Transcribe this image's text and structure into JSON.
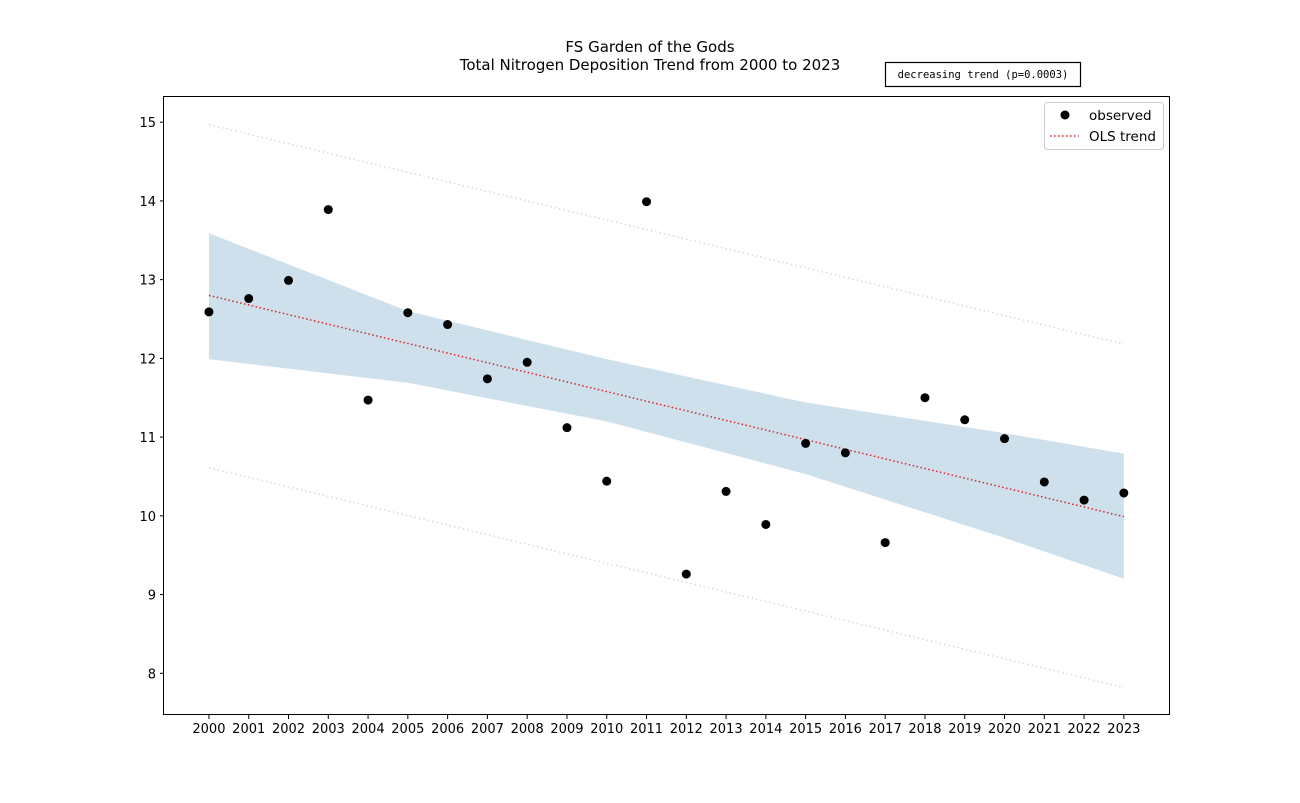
{
  "chart_data": {
    "type": "scatter",
    "title": "FS Garden of the Gods",
    "subtitle": "Total Nitrogen Deposition Trend from 2000 to 2023",
    "annotation": "decreasing trend (p=0.0003)",
    "xlabel": "",
    "ylabel": "",
    "x": [
      2000,
      2001,
      2002,
      2003,
      2004,
      2005,
      2006,
      2007,
      2008,
      2009,
      2010,
      2011,
      2012,
      2013,
      2014,
      2015,
      2016,
      2017,
      2018,
      2019,
      2020,
      2021,
      2022,
      2023
    ],
    "x_tick_labels": [
      "2000",
      "2001",
      "2002",
      "2003",
      "2004",
      "2005",
      "2006",
      "2007",
      "2008",
      "2009",
      "2010",
      "2011",
      "2012",
      "2013",
      "2014",
      "2015",
      "2016",
      "2017",
      "2018",
      "2019",
      "2020",
      "2021",
      "2022",
      "2023"
    ],
    "y_ticks": [
      8,
      9,
      10,
      11,
      12,
      13,
      14,
      15
    ],
    "ylim": [
      7.47,
      15.32
    ],
    "xlim": [
      1998.87,
      2024.16
    ],
    "series": [
      {
        "name": "observed",
        "kind": "points",
        "color": "#000000",
        "values": [
          12.59,
          12.76,
          12.99,
          13.89,
          11.47,
          12.58,
          12.43,
          11.74,
          11.95,
          11.12,
          10.44,
          13.99,
          9.26,
          10.31,
          9.89,
          10.92,
          10.8,
          9.66,
          11.5,
          11.22,
          10.98,
          10.43,
          10.2,
          10.29
        ]
      },
      {
        "name": "OLS trend",
        "kind": "line",
        "style": "dotted",
        "color": "#d62728",
        "start": [
          2000,
          12.8
        ],
        "end": [
          2023,
          9.99
        ]
      }
    ],
    "confidence_band": {
      "color": "#cfe0ed",
      "upper": [
        [
          2000,
          13.59
        ],
        [
          2005,
          12.6
        ],
        [
          2010,
          11.99
        ],
        [
          2015,
          11.44
        ],
        [
          2020,
          11.05
        ],
        [
          2023,
          10.79
        ]
      ],
      "lower": [
        [
          2000,
          11.99
        ],
        [
          2005,
          11.69
        ],
        [
          2010,
          11.2
        ],
        [
          2015,
          10.53
        ],
        [
          2020,
          9.72
        ],
        [
          2023,
          9.2
        ]
      ]
    },
    "prediction_band": {
      "color": "#d9d9d9",
      "upper": [
        [
          2000,
          14.97
        ],
        [
          2023,
          12.18
        ]
      ],
      "lower": [
        [
          2000,
          10.61
        ],
        [
          2023,
          7.82
        ]
      ]
    },
    "legend": {
      "placement": "top-right",
      "entries": [
        {
          "label": "observed",
          "marker": "dot"
        },
        {
          "label": "OLS trend",
          "marker": "dotted-line"
        }
      ]
    },
    "grid": false
  }
}
